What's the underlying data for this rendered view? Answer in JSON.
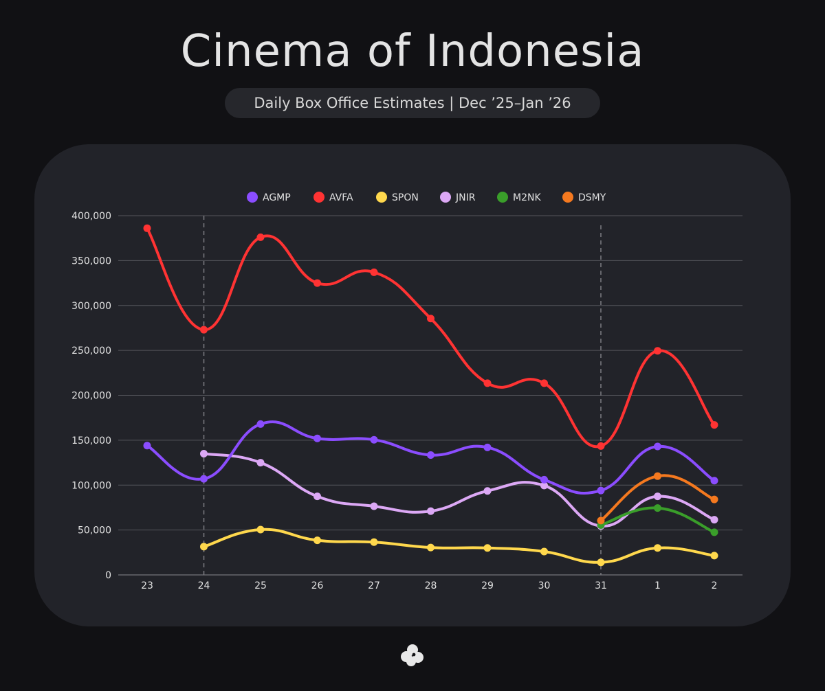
{
  "header": {
    "title": "Cinema of Indonesia",
    "subtitle": "Daily Box Office Estimates | Dec ’25–Jan ’26"
  },
  "footer": {
    "logo_icon": "cloud-logo-icon"
  },
  "chart_data": {
    "type": "line",
    "title": "Cinema of Indonesia",
    "subtitle": "Daily Box Office Estimates | Dec ’25–Jan ’26",
    "xlabel": "",
    "ylabel": "",
    "categories": [
      "23",
      "24",
      "25",
      "26",
      "27",
      "28",
      "29",
      "30",
      "31",
      "1",
      "2"
    ],
    "y_ticks": [
      "0",
      "50,000",
      "100,000",
      "150,000",
      "200,000",
      "250,000",
      "300,000",
      "350,000",
      "400,000"
    ],
    "ylim": [
      0,
      400000
    ],
    "grid": true,
    "legend_position": "top",
    "reference_lines_at": [
      "24",
      "31"
    ],
    "series": [
      {
        "name": "AGMP",
        "color": "#8b4dff",
        "values": [
          144000,
          107000,
          168000,
          152000,
          150500,
          133500,
          142000,
          106000,
          94000,
          143000,
          105000
        ]
      },
      {
        "name": "AVFA",
        "color": "#ff3333",
        "values": [
          386000,
          273000,
          376000,
          325000,
          337000,
          285500,
          213500,
          213500,
          143500,
          249500,
          167000
        ]
      },
      {
        "name": "SPON",
        "color": "#ffd84d",
        "values": [
          null,
          31500,
          50500,
          38500,
          36500,
          30500,
          30000,
          26000,
          14000,
          30000,
          21500
        ]
      },
      {
        "name": "JNIR",
        "color": "#dca8f5",
        "values": [
          null,
          135000,
          125000,
          87500,
          76500,
          71000,
          93500,
          99500,
          54500,
          87500,
          61500
        ]
      },
      {
        "name": "M2NK",
        "color": "#3a9e2a",
        "values": [
          null,
          null,
          null,
          null,
          null,
          null,
          null,
          null,
          55500,
          74500,
          47500
        ]
      },
      {
        "name": "DSMY",
        "color": "#f5791f",
        "values": [
          null,
          null,
          null,
          null,
          null,
          null,
          null,
          null,
          60500,
          110000,
          84000
        ]
      }
    ]
  }
}
